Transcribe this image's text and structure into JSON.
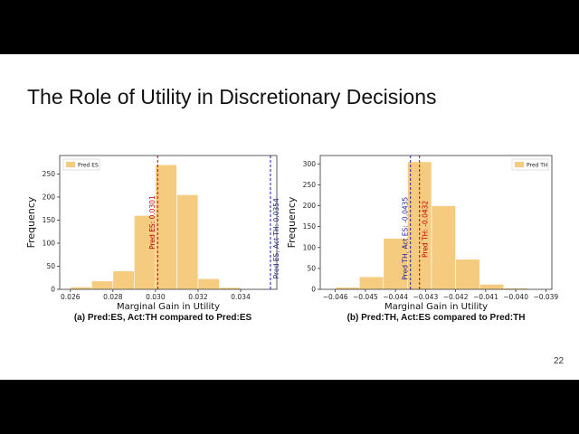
{
  "slide": {
    "title": "The Role of Utility in Discretionary Decisions",
    "page_number": "22"
  },
  "chart_data": [
    {
      "type": "bar",
      "subtype": "histogram",
      "caption": "(a) Pred:ES, Act:TH compared to Pred:ES",
      "xlabel": "Marginal Gain in Utility",
      "ylabel": "Frequency",
      "xlim": [
        0.0255,
        0.0357
      ],
      "ylim": [
        0,
        290
      ],
      "xticks": [
        "0.026",
        "0.028",
        "0.030",
        "0.032",
        "0.034"
      ],
      "xtick_values": [
        0.026,
        0.028,
        0.03,
        0.032,
        0.034
      ],
      "yticks": [
        "0",
        "50",
        "100",
        "150",
        "200",
        "250"
      ],
      "ytick_values": [
        0,
        50,
        100,
        150,
        200,
        250
      ],
      "legend": {
        "label": "Pred ES",
        "position": "top-left"
      },
      "bar_color": "#f5cc7f",
      "bins": [
        {
          "x0": 0.026,
          "x1": 0.027,
          "value": 5
        },
        {
          "x0": 0.027,
          "x1": 0.028,
          "value": 18
        },
        {
          "x0": 0.028,
          "x1": 0.029,
          "value": 40
        },
        {
          "x0": 0.029,
          "x1": 0.03,
          "value": 160
        },
        {
          "x0": 0.03,
          "x1": 0.031,
          "value": 270
        },
        {
          "x0": 0.031,
          "x1": 0.032,
          "value": 205
        },
        {
          "x0": 0.032,
          "x1": 0.033,
          "value": 23
        },
        {
          "x0": 0.033,
          "x1": 0.034,
          "value": 4
        }
      ],
      "reference_lines": [
        {
          "x": 0.0301,
          "label": "Pred ES: 0.0301",
          "color": "#c00000"
        },
        {
          "x": 0.0354,
          "label": "Pred ES, Act TH: 0.0354",
          "color": "#1f1fa0"
        }
      ]
    },
    {
      "type": "bar",
      "subtype": "histogram",
      "caption": "(b) Pred:TH, Act:ES compared to Pred:TH",
      "xlabel": "Marginal Gain in Utility",
      "ylabel": "Frequency",
      "xlim": [
        -0.0465,
        -0.0388
      ],
      "ylim": [
        0,
        320
      ],
      "xticks": [
        "−0.046",
        "−0.045",
        "−0.044",
        "−0.043",
        "−0.042",
        "−0.041",
        "−0.040",
        "−0.039"
      ],
      "xtick_values": [
        -0.046,
        -0.045,
        -0.044,
        -0.043,
        -0.042,
        -0.041,
        -0.04,
        -0.039
      ],
      "yticks": [
        "0",
        "50",
        "100",
        "150",
        "200",
        "250",
        "300"
      ],
      "ytick_values": [
        0,
        50,
        100,
        150,
        200,
        250,
        300
      ],
      "legend": {
        "label": "Pred TH",
        "position": "top-right"
      },
      "bar_color": "#f5cc7f",
      "bins": [
        {
          "x0": -0.046,
          "x1": -0.0452,
          "value": 5
        },
        {
          "x0": -0.0452,
          "x1": -0.0444,
          "value": 30
        },
        {
          "x0": -0.0444,
          "x1": -0.0436,
          "value": 122
        },
        {
          "x0": -0.0436,
          "x1": -0.0428,
          "value": 305
        },
        {
          "x0": -0.0428,
          "x1": -0.042,
          "value": 200
        },
        {
          "x0": -0.042,
          "x1": -0.0412,
          "value": 72
        },
        {
          "x0": -0.0412,
          "x1": -0.0404,
          "value": 12
        },
        {
          "x0": -0.0404,
          "x1": -0.0396,
          "value": 3
        }
      ],
      "reference_lines": [
        {
          "x": -0.0435,
          "label": "Pred TH, Act ES: -0.0435",
          "color": "#1f1fa0"
        },
        {
          "x": -0.0432,
          "label": "Pred TH: -0.0432",
          "color": "#c00000"
        }
      ]
    }
  ]
}
